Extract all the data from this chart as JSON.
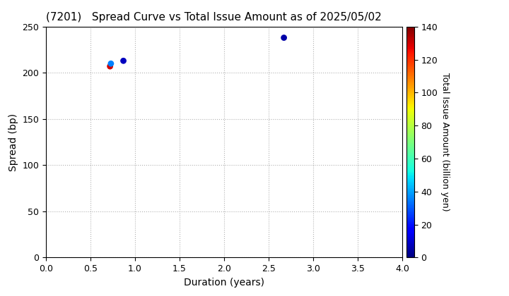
{
  "title": "(7201)   Spread Curve vs Total Issue Amount as of 2025/05/02",
  "xlabel": "Duration (years)",
  "ylabel": "Spread (bp)",
  "colorbar_label": "Total Issue Amount (billion yen)",
  "xlim": [
    0.0,
    4.0
  ],
  "ylim": [
    0,
    250
  ],
  "xticks": [
    0.0,
    0.5,
    1.0,
    1.5,
    2.0,
    2.5,
    3.0,
    3.5,
    4.0
  ],
  "yticks": [
    0,
    50,
    100,
    150,
    200,
    250
  ],
  "colorbar_min": 0,
  "colorbar_max": 140,
  "colorbar_ticks": [
    0,
    20,
    40,
    60,
    80,
    100,
    120,
    140
  ],
  "points": [
    {
      "duration": 0.72,
      "spread": 207,
      "amount": 130
    },
    {
      "duration": 0.73,
      "spread": 210,
      "amount": 35
    },
    {
      "duration": 0.87,
      "spread": 213,
      "amount": 8
    },
    {
      "duration": 2.67,
      "spread": 238,
      "amount": 5
    }
  ],
  "background_color": "#ffffff",
  "grid_color": "#aaaaaa",
  "title_fontsize": 11,
  "axis_fontsize": 10,
  "tick_fontsize": 9,
  "marker_size": 40,
  "fig_width": 7.2,
  "fig_height": 4.2,
  "dpi": 100
}
